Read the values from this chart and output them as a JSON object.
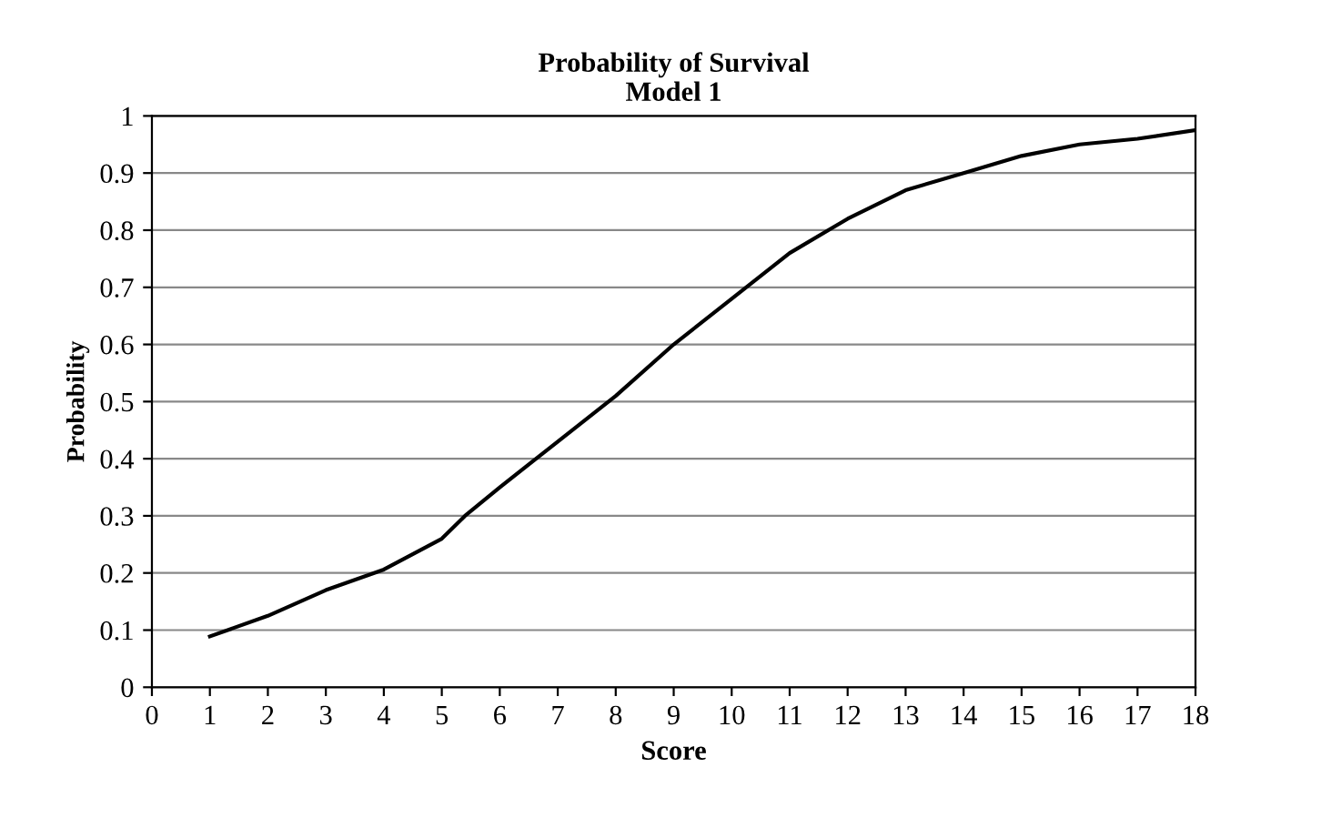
{
  "chart_data": {
    "type": "line",
    "title": "Probability of Survival\nModel 1",
    "xlabel": "Score",
    "ylabel": "Probability",
    "x": [
      1,
      2,
      3,
      4,
      5,
      5.4,
      6,
      7,
      8,
      9,
      10,
      11,
      12,
      13,
      14,
      15,
      16,
      17,
      18
    ],
    "series": [
      {
        "color": "#000000",
        "values": [
          0.089,
          0.125,
          0.17,
          0.206,
          0.26,
          0.3,
          0.35,
          0.43,
          0.51,
          0.6,
          0.68,
          0.76,
          0.82,
          0.87,
          0.9,
          0.93,
          0.95,
          0.96,
          0.975
        ]
      }
    ],
    "xlim": [
      0,
      18
    ],
    "xticks": [
      0,
      1,
      2,
      3,
      4,
      5,
      6,
      7,
      8,
      9,
      10,
      11,
      12,
      13,
      14,
      15,
      16,
      17,
      18
    ],
    "ylim": [
      0,
      1
    ],
    "yticks": [
      0,
      0.1,
      0.2,
      0.3,
      0.4,
      0.5,
      0.6,
      0.7,
      0.8,
      0.9,
      1
    ],
    "grid": "y",
    "marker": "none",
    "line_style": "solid"
  }
}
